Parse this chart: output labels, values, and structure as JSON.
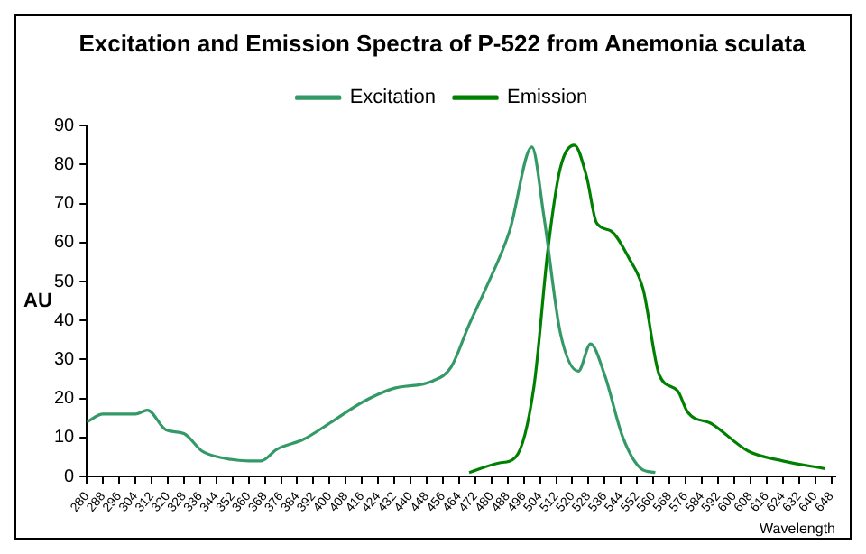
{
  "chart_data": {
    "type": "line",
    "title": "Excitation and Emission Spectra of P-522 from Anemonia sculata",
    "xlabel": "Wavelength",
    "ylabel": "AU",
    "series": [
      {
        "name": "Excitation",
        "color": "#339966",
        "x": [
          280,
          288,
          304,
          310,
          319,
          328,
          337,
          345,
          360,
          366,
          374,
          387,
          401,
          416,
          431,
          451,
          460,
          469,
          477,
          489,
          500,
          506,
          514,
          523,
          529,
          536,
          545,
          554,
          561
        ],
        "values": [
          14,
          16,
          16,
          17,
          12,
          11,
          6.5,
          5,
          4,
          4,
          7,
          9.5,
          14,
          19,
          22.5,
          24.5,
          28,
          39,
          48,
          63,
          84.5,
          66.5,
          37,
          27,
          34,
          26,
          10,
          2,
          1
        ]
      },
      {
        "name": "Emission",
        "color": "#008000",
        "x": [
          469,
          484,
          492,
          501,
          508,
          514,
          521,
          527,
          532,
          539,
          548,
          555,
          563,
          572,
          577,
          589,
          607,
          624,
          645
        ],
        "values": [
          1,
          3.5,
          5,
          23,
          58.5,
          79,
          85,
          77,
          65,
          63,
          56,
          48,
          26,
          22,
          16.5,
          13.5,
          6.5,
          4,
          2
        ]
      }
    ],
    "xlim": [
      280,
      650
    ],
    "xticks": [
      280,
      288,
      296,
      304,
      312,
      320,
      328,
      336,
      344,
      352,
      360,
      368,
      376,
      384,
      392,
      400,
      408,
      416,
      424,
      432,
      440,
      448,
      456,
      464,
      472,
      480,
      488,
      496,
      504,
      512,
      520,
      528,
      536,
      544,
      552,
      560,
      568,
      576,
      584,
      592,
      600,
      608,
      616,
      624,
      632,
      640,
      648
    ],
    "ylim": [
      0,
      90
    ],
    "yticks": [
      0,
      10,
      20,
      30,
      40,
      50,
      60,
      70,
      80,
      90
    ],
    "grid": false,
    "legend": "top",
    "marker": "none",
    "line_style": "solid"
  }
}
